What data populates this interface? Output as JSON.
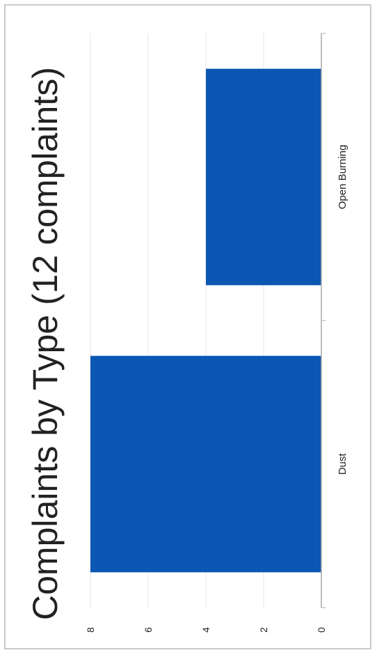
{
  "chart_data": {
    "type": "bar",
    "orientation": "vertical",
    "rotated_ccw_90": true,
    "title": "Complaints by Type (12 complaints)",
    "categories": [
      "Dust",
      "Open Burning"
    ],
    "values": [
      8,
      4
    ],
    "ylim": [
      0,
      8
    ],
    "yticks": [
      "0",
      "2",
      "4",
      "6",
      "8"
    ],
    "xlabel": "",
    "ylabel": "",
    "grid": true,
    "legend": "none",
    "colors": {
      "bar": "#0b57b3",
      "grid": "#e6e6e6",
      "axis": "#a8a8a8",
      "text": "#222222"
    }
  }
}
